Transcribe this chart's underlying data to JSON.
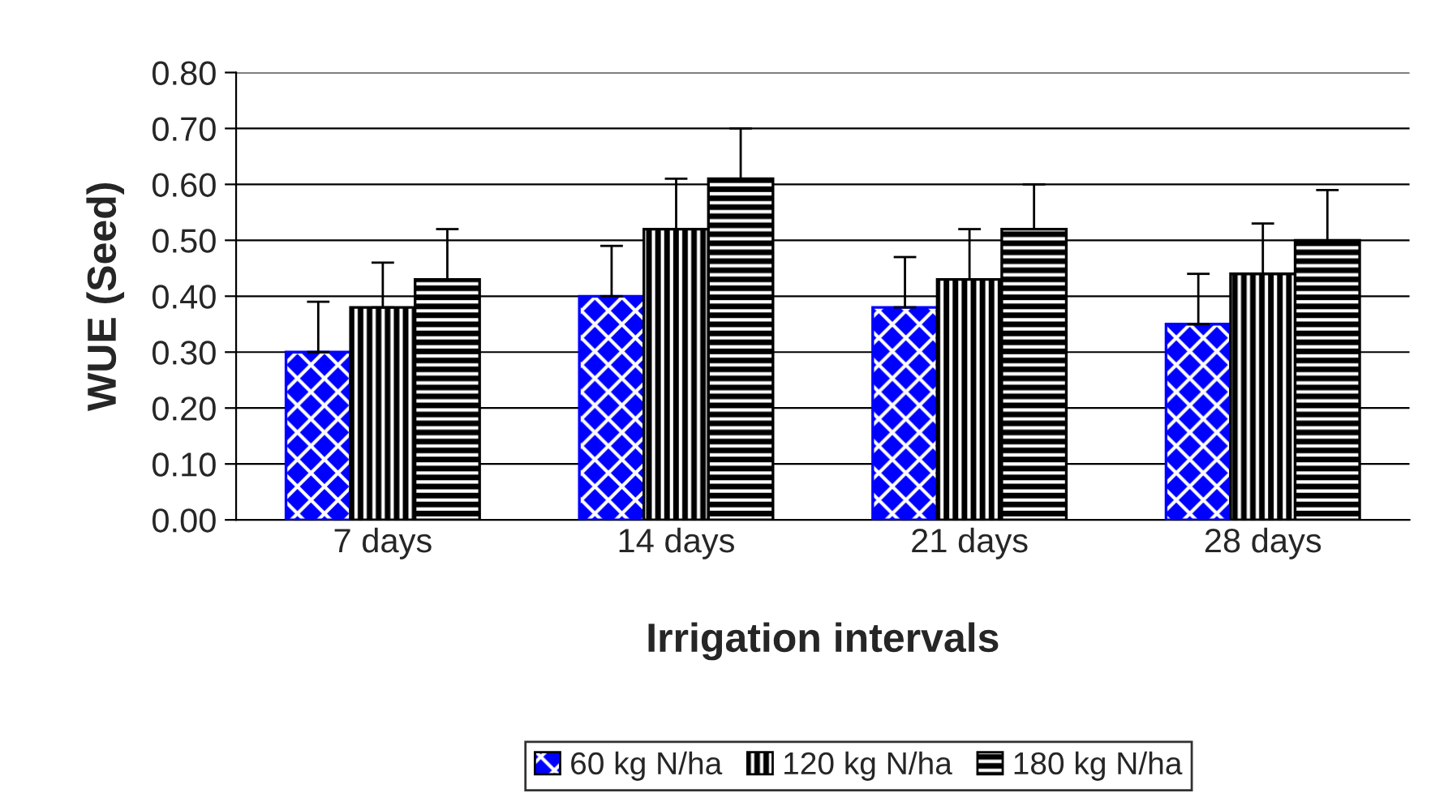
{
  "chart_data": {
    "type": "bar",
    "xlabel": "Irrigation intervals",
    "ylabel": "WUE (Seed)",
    "categories": [
      "7 days",
      "14 days",
      "21 days",
      "28 days"
    ],
    "series": [
      {
        "name": "60 kg N/ha",
        "color": "#0000ff",
        "values": [
          0.3,
          0.4,
          0.38,
          0.35
        ],
        "errors": [
          [
            0.3,
            0.39
          ],
          [
            0.4,
            0.49
          ],
          [
            0.38,
            0.47
          ],
          [
            0.35,
            0.44
          ]
        ]
      },
      {
        "name": "120 kg N/ha",
        "color": "#000000",
        "values": [
          0.38,
          0.52,
          0.43,
          0.44
        ],
        "errors": [
          [
            0.38,
            0.46
          ],
          [
            0.52,
            0.61
          ],
          [
            0.43,
            0.52
          ],
          [
            0.44,
            0.53
          ]
        ]
      },
      {
        "name": "180 kg N/ha",
        "color": "#000000",
        "values": [
          0.43,
          0.61,
          0.52,
          0.5
        ],
        "errors": [
          [
            0.43,
            0.52
          ],
          [
            0.61,
            0.7
          ],
          [
            0.52,
            0.6
          ],
          [
            0.5,
            0.59
          ]
        ]
      }
    ],
    "ylim": [
      0,
      0.8
    ],
    "yticks": [
      {
        "value": 0,
        "label": "0.00"
      },
      {
        "value": 0.1,
        "label": "0.10"
      },
      {
        "value": 0.2,
        "label": "0.20"
      },
      {
        "value": 0.3,
        "label": "0.30"
      },
      {
        "value": 0.4,
        "label": "0.40"
      },
      {
        "value": 0.5,
        "label": "0.50"
      },
      {
        "value": 0.6,
        "label": "0.60"
      },
      {
        "value": 0.7,
        "label": "0.70"
      },
      {
        "value": 0.8,
        "label": "0.80"
      }
    ],
    "grid": "y",
    "legend": "bottom"
  }
}
